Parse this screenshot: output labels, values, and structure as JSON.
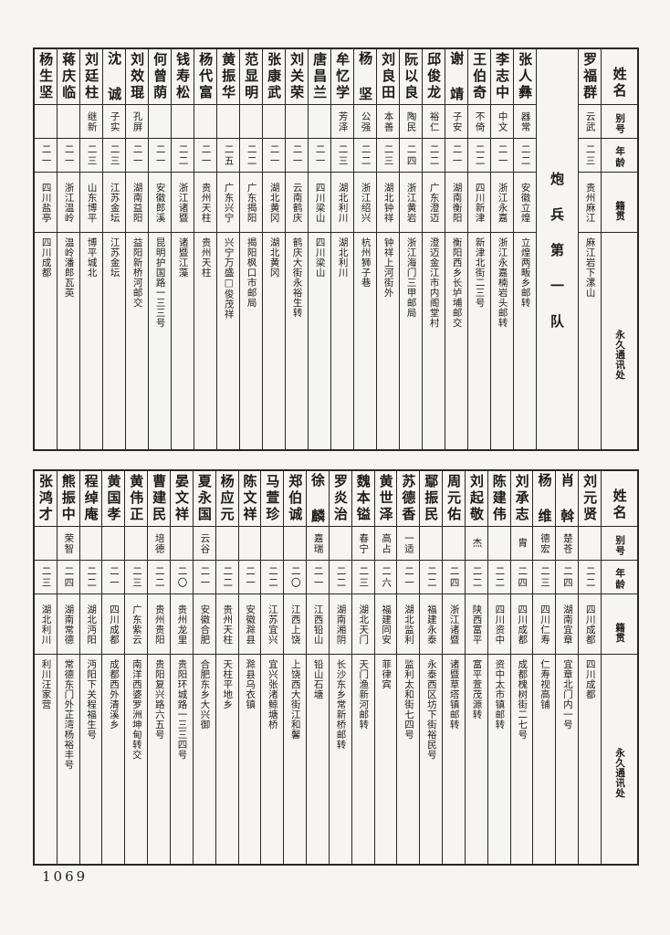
{
  "page": {
    "page_number": "1069",
    "section_title": "炮兵第一队",
    "headers": {
      "name": "姓名",
      "alias": "别号",
      "age": "年龄",
      "origin": "籍贯",
      "address": "永久通讯处"
    }
  },
  "table1": {
    "people": [
      {
        "name": "罗福群",
        "alias": "云武",
        "age": "二三",
        "origin": "贵州麻江",
        "address": "麻江岩下漯山"
      },
      {
        "name": "张人彝",
        "alias": "器常",
        "age": "二二",
        "origin": "安徽立煌",
        "address": "立煌两畈乡邮转"
      },
      {
        "name": "李志中",
        "alias": "中文",
        "age": "二一",
        "origin": "浙江永嘉",
        "address": "浙江永嘉楠岩头邮转"
      },
      {
        "name": "王伯奇",
        "alias": "不倚",
        "age": "二二",
        "origin": "四川新津",
        "address": "新津北街二三号"
      },
      {
        "name": "谢 靖",
        "alias": "子安",
        "age": "二一",
        "origin": "湖南衡阳",
        "address": "衡阳西乡长垆埔邮交"
      },
      {
        "name": "邱俊龙",
        "alias": "裕仁",
        "age": "二二",
        "origin": "广东澄迈",
        "address": "澄迈金江市内阁堂村"
      },
      {
        "name": "阮以良",
        "alias": "陶民",
        "age": "二四",
        "origin": "浙江黄岩",
        "address": "浙江海门三甲邮局"
      },
      {
        "name": "刘良田",
        "alias": "本善",
        "age": "二三",
        "origin": "湖北钟祥",
        "address": "钟祥上河街外"
      },
      {
        "name": "杨 坚",
        "alias": "公强",
        "age": "二二",
        "origin": "浙江绍兴",
        "address": "杭州狮子巷"
      },
      {
        "name": "牟忆学",
        "alias": "芳泽",
        "age": "二三",
        "origin": "湖北利川",
        "address": "湖北利川"
      },
      {
        "name": "唐昌兰",
        "alias": "",
        "age": "二一",
        "origin": "四川梁山",
        "address": "四川梁山"
      },
      {
        "name": "刘关荣",
        "alias": "",
        "age": "二一",
        "origin": "云南鹤庆",
        "address": "鹤庆大街永裕生转"
      },
      {
        "name": "张康武",
        "alias": "",
        "age": "二一",
        "origin": "湖北黄冈",
        "address": "湖北黄冈"
      },
      {
        "name": "范显明",
        "alias": "",
        "age": "二二",
        "origin": "广东揭阳",
        "address": "揭阳枫口市邮局"
      },
      {
        "name": "黄振华",
        "alias": "",
        "age": "二五",
        "origin": "广东兴宁",
        "address": "兴宁万盛□俊茂祥"
      },
      {
        "name": "杨代富",
        "alias": "",
        "age": "二一",
        "origin": "贵州天柱",
        "address": "贵州天柱"
      },
      {
        "name": "钱寿松",
        "alias": "",
        "age": "二二",
        "origin": "浙江诸暨",
        "address": "诸暨江藻"
      },
      {
        "name": "何曾荫",
        "alias": "",
        "age": "二一",
        "origin": "安徽郎溪",
        "address": "昆明护国路一三三号"
      },
      {
        "name": "刘效琨",
        "alias": "孔屏",
        "age": "二一",
        "origin": "湖南益阳",
        "address": "益阳新桥河邮交"
      },
      {
        "name": "沈 诚",
        "alias": "子实",
        "age": "二三",
        "origin": "江苏金坛",
        "address": "江苏金坛"
      },
      {
        "name": "刘廷柱",
        "alias": "继新",
        "age": "二三",
        "origin": "山东博平",
        "address": "博平城北"
      },
      {
        "name": "蒋庆临",
        "alias": "",
        "age": "二一",
        "origin": "浙江温岭",
        "address": "温岭潘郎瓦英"
      },
      {
        "name": "杨生坚",
        "alias": "",
        "age": "二一",
        "origin": "四川盐亭",
        "address": "四川成都"
      }
    ]
  },
  "table2": {
    "people": [
      {
        "name": "刘元贤",
        "alias": "",
        "age": "二二",
        "origin": "四川成都",
        "address": "四川成都"
      },
      {
        "name": "肖 斡",
        "alias": "楚苍",
        "age": "二四",
        "origin": "湖南宜章",
        "address": "宜章北门内一号"
      },
      {
        "name": "杨 维",
        "alias": "德宏",
        "age": "二三",
        "origin": "四川仁寿",
        "address": "仁寿视高铺"
      },
      {
        "name": "刘承志",
        "alias": "胄",
        "age": "二四",
        "origin": "四川成都",
        "address": "成都槐树街二七号"
      },
      {
        "name": "陈建伟",
        "alias": "",
        "age": "二二",
        "origin": "四川资中",
        "address": "资中太市镇邮转"
      },
      {
        "name": "刘起敬",
        "alias": "杰",
        "age": "二二",
        "origin": "陕西富平",
        "address": "富平萱茂源转"
      },
      {
        "name": "周元佑",
        "alias": "",
        "age": "二四",
        "origin": "浙江诸暨",
        "address": "诸暨草塔镇邮转"
      },
      {
        "name": "鄢振民",
        "alias": "",
        "age": "二二",
        "origin": "福建永泰",
        "address": "永泰西区坊下街裕民号"
      },
      {
        "name": "苏德香",
        "alias": "一适",
        "age": "二一",
        "origin": "湖北监利",
        "address": "监利太和街七四号"
      },
      {
        "name": "黄世泽",
        "alias": "高占",
        "age": "二六",
        "origin": "福建同安",
        "address": "菲律宾"
      },
      {
        "name": "魏本镒",
        "alias": "春宁",
        "age": "二三",
        "origin": "湖北天门",
        "address": "天门渔新河邮转"
      },
      {
        "name": "罗炎治",
        "alias": "",
        "age": "二二",
        "origin": "湖南湘阴",
        "address": "长沙东乡常新桥邮转"
      },
      {
        "name": "徐 麟",
        "alias": "嘉瑞",
        "age": "二一",
        "origin": "江西铅山",
        "address": "铅山石塘"
      },
      {
        "name": "郑伯诚",
        "alias": "",
        "age": "二〇",
        "origin": "江西上饶",
        "address": "上饶西大街江和馨"
      },
      {
        "name": "马萱珍",
        "alias": "",
        "age": "二二",
        "origin": "江苏宜兴",
        "address": "宜兴张渚鲸塘桥"
      },
      {
        "name": "陈文祥",
        "alias": "",
        "age": "二一",
        "origin": "安徽滁县",
        "address": "滁县乌衣镇"
      },
      {
        "name": "杨应元",
        "alias": "",
        "age": "二二",
        "origin": "贵州天柱",
        "address": "天柱平地乡"
      },
      {
        "name": "夏永国",
        "alias": "云谷",
        "age": "二一",
        "origin": "安徽合肥",
        "address": "合肥东乡大兴御"
      },
      {
        "name": "晏文祥",
        "alias": "",
        "age": "二〇",
        "origin": "贵州龙里",
        "address": "贵阳环城路一三三四号"
      },
      {
        "name": "曹建民",
        "alias": "培德",
        "age": "二二",
        "origin": "贵州贵阳",
        "address": "贵阳复兴路六五号"
      },
      {
        "name": "黄伟正",
        "alias": "",
        "age": "二三",
        "origin": "广东紫云",
        "address": "南洋西婆罗洲坤甸转交"
      },
      {
        "name": "黄国孝",
        "alias": "",
        "age": "二一",
        "origin": "四川成都",
        "address": "成都西外清溪乡"
      },
      {
        "name": "程绰庵",
        "alias": "",
        "age": "二二",
        "origin": "湖北沔阳",
        "address": "沔阳下关程福生号"
      },
      {
        "name": "熊振中",
        "alias": "荣智",
        "age": "二四",
        "origin": "湖南常德",
        "address": "常德东门外芷湾杨裕丰号"
      },
      {
        "name": "张鸿才",
        "alias": "",
        "age": "二三",
        "origin": "湖北利川",
        "address": "利川汪家营"
      }
    ]
  }
}
